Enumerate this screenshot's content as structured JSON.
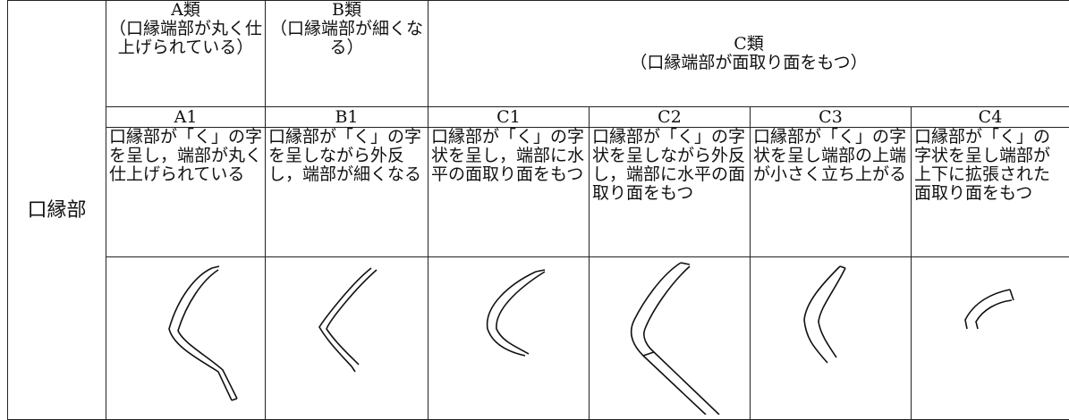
{
  "row_label": "口縁部",
  "groups": [
    {
      "title": "A類",
      "subtitle": "（口縁端部が丸く仕上げられている）"
    },
    {
      "title": "B類",
      "subtitle": "（口縁端部が細くなる）"
    },
    {
      "title": "C類",
      "subtitle": "（口縁端部が面取り面をもつ）"
    }
  ],
  "types": [
    {
      "code": "A1",
      "description": "口縁部が「く」の字を呈し，端部が丸く仕上げられている"
    },
    {
      "code": "B1",
      "description": "口縁部が「く」の字を呈しながら外反し，端部が細くなる"
    },
    {
      "code": "C1",
      "description": "口縁部が「く」の字状を呈し，端部に水平の面取り面をもつ"
    },
    {
      "code": "C2",
      "description": "口縁部が「く」の字状を呈しながら外反し，端部に水平の面取り面をもつ"
    },
    {
      "code": "C3",
      "description": "口縁部が「く」の字状を呈し端部の上端が小さく立ち上がる"
    },
    {
      "code": "C4",
      "description": "口縁部が「く」の字状を呈し端部が上下に拡張された面取り面をもつ"
    }
  ]
}
